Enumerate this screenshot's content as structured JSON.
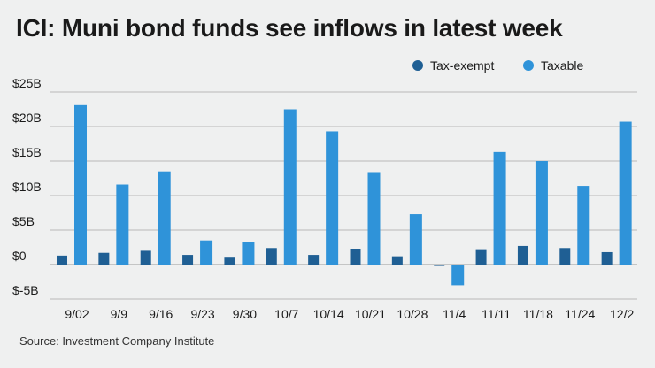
{
  "chart_data": {
    "type": "bar",
    "title": "ICI: Muni bond funds see inflows in latest week",
    "source": "Source: Investment Company Institute",
    "xlabel": "",
    "ylabel": "",
    "ylim": [
      -5,
      25
    ],
    "yticks": [
      {
        "value": 25,
        "label": "$25B"
      },
      {
        "value": 20,
        "label": "$20B"
      },
      {
        "value": 15,
        "label": "$15B"
      },
      {
        "value": 10,
        "label": "$10B"
      },
      {
        "value": 5,
        "label": "$5B"
      },
      {
        "value": 0,
        "label": "$0"
      },
      {
        "value": -5,
        "label": "$-5B"
      }
    ],
    "categories": [
      "9/02",
      "9/9",
      "9/16",
      "9/23",
      "9/30",
      "10/7",
      "10/14",
      "10/21",
      "10/28",
      "11/4",
      "11/11",
      "11/18",
      "11/24",
      "12/2"
    ],
    "series": [
      {
        "name": "Tax-exempt",
        "color": "#1f5f94",
        "values": [
          1.3,
          1.7,
          2.0,
          1.4,
          1.0,
          2.4,
          1.4,
          2.2,
          1.2,
          -0.2,
          2.1,
          2.7,
          2.4,
          1.8
        ]
      },
      {
        "name": "Taxable",
        "color": "#2f93d9",
        "values": [
          23.1,
          11.6,
          13.5,
          3.5,
          3.3,
          22.5,
          19.3,
          13.4,
          7.3,
          -3.0,
          16.3,
          15.0,
          11.4,
          20.7
        ]
      }
    ],
    "legend_position": "top-right",
    "grid": true
  }
}
